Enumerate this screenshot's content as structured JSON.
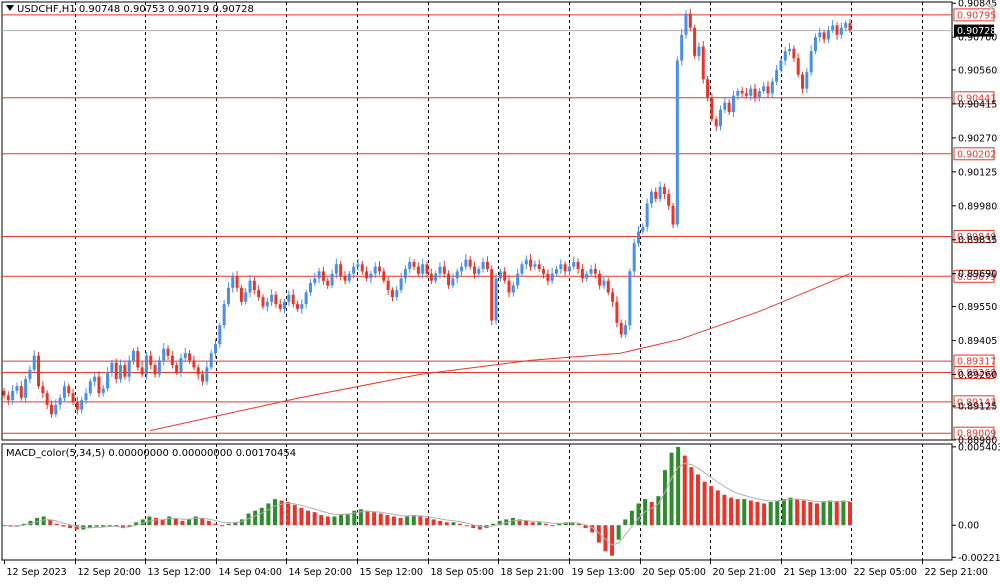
{
  "symbol_bar": {
    "symbol": "USDCHF,H1",
    "open": "0.90748",
    "high": "0.90753",
    "low": "0.90719",
    "close": "0.90728"
  },
  "macd_label": {
    "name": "MACD_color(5,34,5)",
    "v1": "0.00000000",
    "v2": "0.00000000",
    "v3": "0.00170454"
  },
  "colors": {
    "bull": "#4a8fe7",
    "bear": "#e8352a",
    "level_line": "#e8352a",
    "ma_line": "#e8352a",
    "hist_up": "#2e8b2e",
    "hist_down": "#e8352a",
    "signal": "#b0b0b0",
    "grid": "#000000",
    "current_price_bg": "#000000"
  },
  "chart_data": [
    {
      "type": "candlestick",
      "title": "",
      "price_ticks": [
        "0.90845",
        "0.90700",
        "0.90560",
        "0.90415",
        "0.90270",
        "0.90125",
        "0.89980",
        "0.89835",
        "0.89690",
        "0.89550",
        "0.89405",
        "0.89260",
        "0.89125",
        "0.88980"
      ],
      "ylim": [
        0.8898,
        0.9085
      ],
      "horizontal_levels": [
        "0.90795",
        "0.90441",
        "0.90202",
        "0.89849",
        "0.89679",
        "0.89317",
        "0.89268",
        "0.89143",
        "0.89009"
      ],
      "current_price": "0.90728",
      "time_labels": [
        "12 Sep 2023",
        "12 Sep 20:00",
        "13 Sep 12:00",
        "14 Sep 04:00",
        "14 Sep 20:00",
        "15 Sep 12:00",
        "18 Sep 05:00",
        "18 Sep 21:00",
        "19 Sep 13:00",
        "20 Sep 05:00",
        "20 Sep 21:00",
        "21 Sep 13:00",
        "22 Sep 05:00",
        "22 Sep 21:00"
      ],
      "close_series": [
        0.8917,
        0.8915,
        0.8919,
        0.8921,
        0.8916,
        0.8924,
        0.8928,
        0.8934,
        0.8921,
        0.8918,
        0.8913,
        0.8909,
        0.8913,
        0.8916,
        0.8921,
        0.8918,
        0.8914,
        0.8911,
        0.8915,
        0.8918,
        0.8923,
        0.8925,
        0.8918,
        0.892,
        0.8927,
        0.8931,
        0.8924,
        0.893,
        0.8925,
        0.8932,
        0.8936,
        0.8929,
        0.8926,
        0.8934,
        0.893,
        0.8926,
        0.8932,
        0.8937,
        0.8934,
        0.893,
        0.8927,
        0.8933,
        0.8935,
        0.8932,
        0.8929,
        0.8926,
        0.8923,
        0.8929,
        0.8935,
        0.8939,
        0.8947,
        0.8956,
        0.8963,
        0.8968,
        0.8963,
        0.8957,
        0.8961,
        0.8966,
        0.8962,
        0.8959,
        0.8955,
        0.8957,
        0.896,
        0.8956,
        0.8954,
        0.8957,
        0.896,
        0.8956,
        0.8954,
        0.8956,
        0.8961,
        0.8965,
        0.8967,
        0.897,
        0.8966,
        0.8964,
        0.8969,
        0.8973,
        0.8968,
        0.8966,
        0.8969,
        0.8972,
        0.8973,
        0.897,
        0.8967,
        0.8969,
        0.8972,
        0.897,
        0.8966,
        0.8962,
        0.8959,
        0.8962,
        0.8967,
        0.8971,
        0.8974,
        0.8972,
        0.8969,
        0.8973,
        0.8969,
        0.8966,
        0.8969,
        0.8972,
        0.8969,
        0.8964,
        0.8967,
        0.897,
        0.8972,
        0.8975,
        0.8972,
        0.8969,
        0.8971,
        0.8974,
        0.8971,
        0.8949,
        0.8967,
        0.897,
        0.8966,
        0.8961,
        0.8964,
        0.8969,
        0.8973,
        0.8975,
        0.8972,
        0.8973,
        0.8971,
        0.8969,
        0.8966,
        0.8969,
        0.8971,
        0.8973,
        0.897,
        0.8972,
        0.8974,
        0.8971,
        0.8967,
        0.8969,
        0.8971,
        0.8969,
        0.8964,
        0.8966,
        0.8961,
        0.8957,
        0.8948,
        0.8943,
        0.8947,
        0.897,
        0.8982,
        0.8987,
        0.8989,
        0.8999,
        0.9004,
        0.9001,
        0.9006,
        0.9003,
        0.8998,
        0.899,
        0.906,
        0.9071,
        0.908,
        0.9074,
        0.9062,
        0.9066,
        0.9052,
        0.9044,
        0.9035,
        0.9032,
        0.9039,
        0.9042,
        0.9038,
        0.9045,
        0.9047,
        0.9046,
        0.9045,
        0.9048,
        0.9044,
        0.9047,
        0.9049,
        0.9046,
        0.9051,
        0.9056,
        0.906,
        0.9064,
        0.9065,
        0.9061,
        0.9054,
        0.9048,
        0.9055,
        0.9064,
        0.907,
        0.9072,
        0.9069,
        0.9073,
        0.9075,
        0.9071,
        0.9074,
        0.9076,
        0.9073
      ],
      "ma_series": [
        {
          "x": 150,
          "y": 0.8902
        },
        {
          "x": 300,
          "y": 0.8916
        },
        {
          "x": 420,
          "y": 0.8926
        },
        {
          "x": 530,
          "y": 0.8932
        },
        {
          "x": 620,
          "y": 0.8935
        },
        {
          "x": 680,
          "y": 0.8941
        },
        {
          "x": 760,
          "y": 0.8953
        },
        {
          "x": 850,
          "y": 0.8969
        }
      ]
    },
    {
      "type": "bar",
      "title": "",
      "ticks": [
        "0.0054035",
        "0.00",
        "-0.002215"
      ],
      "ylim": [
        -0.0024,
        0.0056
      ],
      "values": [
        0.0,
        -0.0001,
        -0.0001,
        0.0001,
        0.0003,
        0.0005,
        0.0006,
        0.0004,
        0.0001,
        -0.0001,
        -0.0002,
        -0.0003,
        -0.0003,
        -0.0002,
        -0.0001,
        -0.0001,
        0.0,
        -0.0001,
        -0.0002,
        -0.0001,
        0.0002,
        0.0004,
        0.0006,
        0.0005,
        0.0004,
        0.0006,
        0.0005,
        0.0003,
        0.0004,
        0.0006,
        0.0005,
        0.0003,
        0.0001,
        0.0,
        0.0001,
        0.0002,
        0.0004,
        0.0008,
        0.001,
        0.0012,
        0.0015,
        0.0018,
        0.0017,
        0.0016,
        0.0014,
        0.0012,
        0.001,
        0.0009,
        0.0007,
        0.0006,
        0.0006,
        0.0007,
        0.0008,
        0.001,
        0.0011,
        0.001,
        0.0009,
        0.0008,
        0.0007,
        0.0006,
        0.0005,
        0.0006,
        0.0007,
        0.0006,
        0.0005,
        0.0004,
        0.0003,
        0.0002,
        0.0002,
        0.0001,
        0.0,
        -0.0002,
        -0.0003,
        -0.0002,
        0.0001,
        0.0003,
        0.0004,
        0.0005,
        0.0004,
        0.0003,
        0.0002,
        0.0002,
        0.0001,
        0.0,
        0.0001,
        0.0002,
        0.0002,
        0.0001,
        -0.0002,
        -0.0005,
        -0.0012,
        -0.0018,
        -0.0021,
        -0.001,
        0.0004,
        0.001,
        0.0015,
        0.0018,
        0.0016,
        0.002,
        0.0038,
        0.005,
        0.0054,
        0.0048,
        0.004,
        0.0035,
        0.003,
        0.0027,
        0.0024,
        0.0021,
        0.0019,
        0.0018,
        0.0018,
        0.0017,
        0.0016,
        0.0015,
        0.0016,
        0.0017,
        0.0018,
        0.0019,
        0.0018,
        0.0017,
        0.0016,
        0.0015,
        0.0016,
        0.0017,
        0.0016,
        0.0017,
        0.0016
      ]
    }
  ]
}
